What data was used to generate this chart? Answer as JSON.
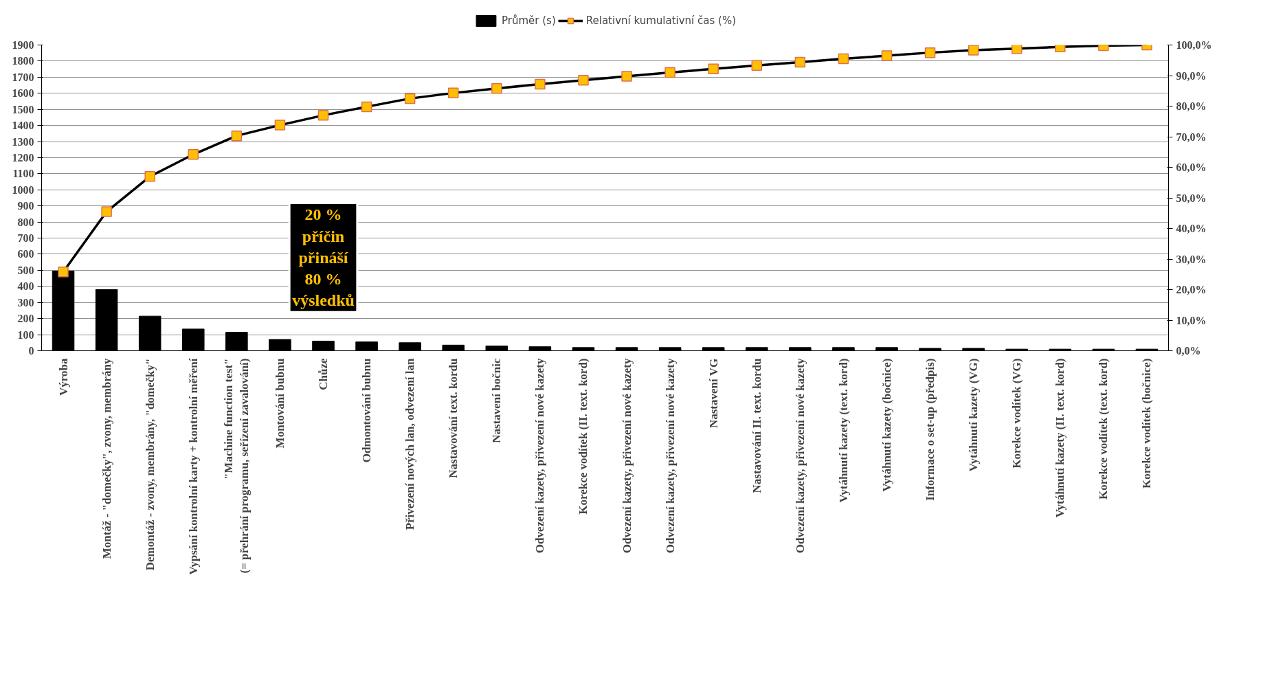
{
  "chart_data": {
    "type": "bar",
    "categories": [
      "Výroba",
      "Montáž - \"domečky\", zvony, membrány",
      "Demontáž - zvony, membrány, \"domečky\"",
      "Vypsání kontrolní karty + kontrolní měření",
      "\"Machine function test\"\n(= přehrání programu, seřízení zavalování)",
      "Montování bubnu",
      "Chůze",
      "Odmontování bubnu",
      "Přivezení nových lan, odvezení lan",
      "Nastavování text. kordu",
      "Nastavení bočnic",
      "Odvezení kazety, přivezení nové kazety",
      "Korekce vodítek (II. text. kord)",
      "Odvezení kazety, přivezení nové kazety",
      "Odvezení kazety, přivezení nové kazety",
      "Nastavení VG",
      "Nastavování II. text. kordu",
      "Odvezení kazety, přivezení nové kazety",
      "Vytáhnutí kazety (text. kord)",
      "Vytáhnutí kazety (bočnice)",
      "Informace o set-up (předpis)",
      "Vytáhnutí kazety (VG)",
      "Korekce vodítek (VG)",
      "Vytáhnutí kazety (II. text. kord)",
      "Korekce vodítek (text. kord)",
      "Korekce vodítek (bočnice)"
    ],
    "series": [
      {
        "name": "Průměr (s)",
        "color": "#000000",
        "values": [
          495,
          380,
          215,
          135,
          115,
          70,
          60,
          55,
          50,
          35,
          30,
          25,
          20,
          20,
          20,
          20,
          20,
          20,
          20,
          20,
          15,
          15,
          10,
          10,
          10,
          10
        ]
      },
      {
        "name": "Relativní kumulativní čas (%)",
        "type": "line",
        "axis": "y2",
        "color": "#ffc000",
        "marker": "square",
        "values": [
          25.8,
          45.5,
          57,
          64.2,
          70.3,
          73.8,
          77,
          79.8,
          82.5,
          84.3,
          85.8,
          87.2,
          88.5,
          89.8,
          91,
          92.2,
          93.3,
          94.4,
          95.5,
          96.5,
          97.5,
          98.3,
          98.8,
          99.4,
          99.8,
          100
        ]
      }
    ],
    "ylim": [
      0,
      1900
    ],
    "yticks": [
      0,
      100,
      200,
      300,
      400,
      500,
      600,
      700,
      800,
      900,
      1000,
      1100,
      1200,
      1300,
      1400,
      1500,
      1600,
      1700,
      1800,
      1900
    ],
    "y2lim": [
      0,
      100
    ],
    "y2ticks": [
      {
        "value": 0,
        "label": "0,0%"
      },
      {
        "value": 10,
        "label": "10,0%"
      },
      {
        "value": 20,
        "label": "20,0%"
      },
      {
        "value": 30,
        "label": "30,0%"
      },
      {
        "value": 40,
        "label": "40,0%"
      },
      {
        "value": 50,
        "label": "50,0%"
      },
      {
        "value": 60,
        "label": "60,0%"
      },
      {
        "value": 70,
        "label": "70,0%"
      },
      {
        "value": 80,
        "label": "80,0%"
      },
      {
        "value": 90,
        "label": "90,0%"
      },
      {
        "value": 100,
        "label": "100,0%"
      }
    ],
    "annotations": [
      "20 %\npříčin\npřináší\n80 %\nvýsledků"
    ],
    "grid": "y",
    "legend": "top"
  }
}
